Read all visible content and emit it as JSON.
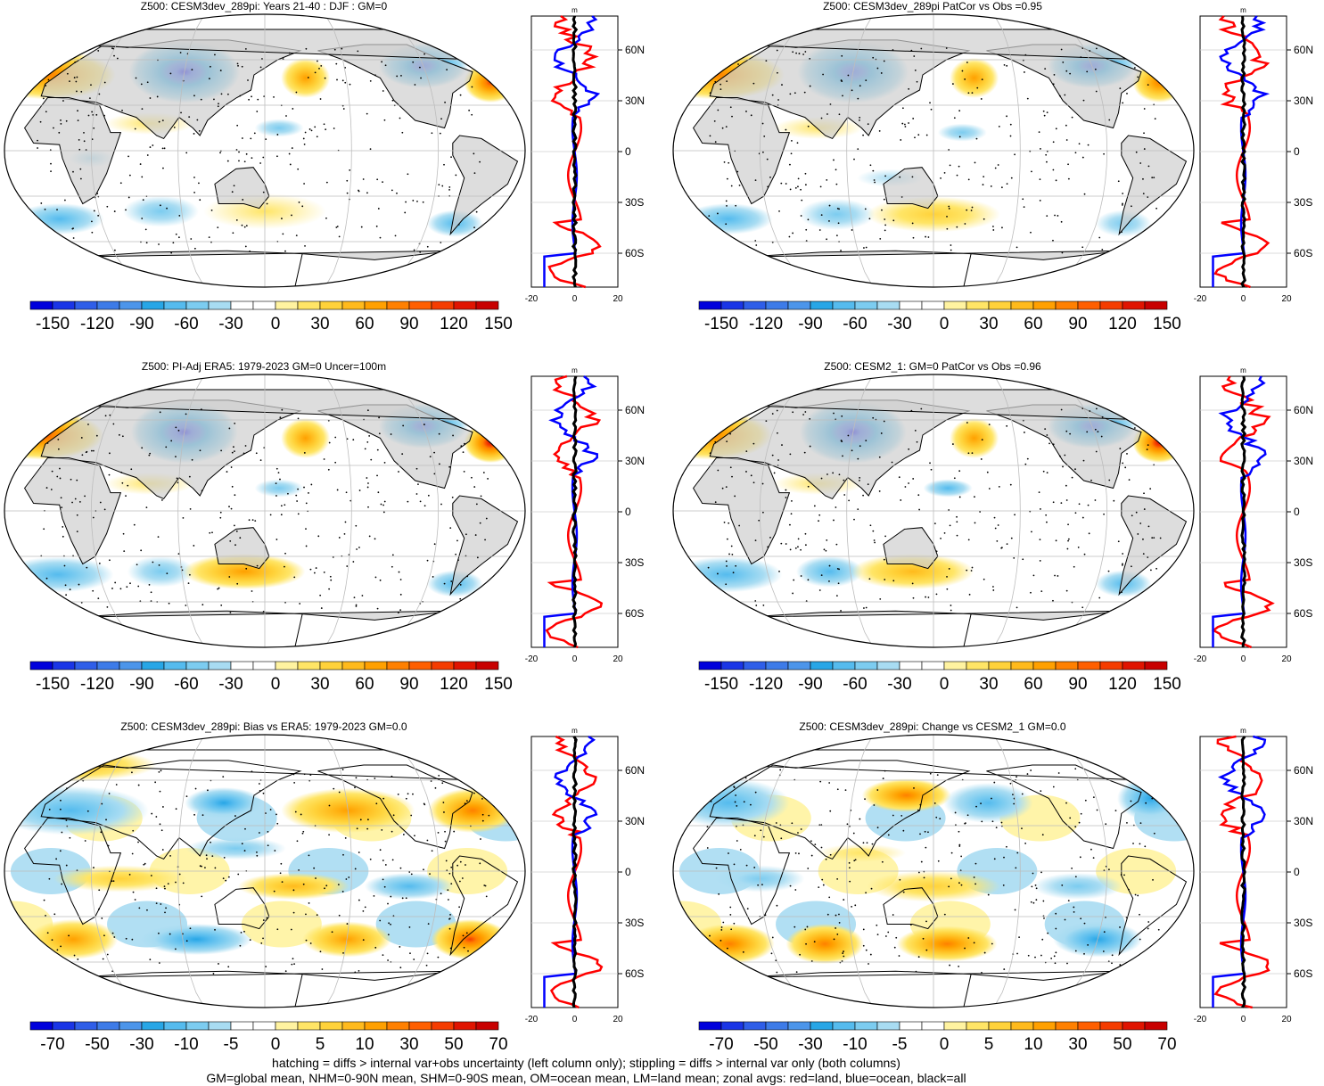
{
  "panels": [
    {
      "title": "Z500: CESM3dev_289pi: Years 21-40 : DJF : GM=0",
      "scale": "main"
    },
    {
      "title": "Z500: CESM3dev_289pi PatCor vs Obs =0.95",
      "scale": "main"
    },
    {
      "title": "Z500: PI-Adj ERA5: 1979-2023 GM=0 Uncer=100m",
      "scale": "main"
    },
    {
      "title": "Z500: CESM2_1: GM=0 PatCor vs Obs =0.96",
      "scale": "main"
    },
    {
      "title": "Z500: CESM3dev_289pi: Bias vs ERA5: 1979-2023 GM=0.0",
      "scale": "diff"
    },
    {
      "title": "Z500: CESM3dev_289pi: Change vs CESM2_1 GM=0.0",
      "scale": "diff"
    }
  ],
  "colorbars": {
    "main": {
      "labels": [
        "-150",
        "-120",
        "-90",
        "-60",
        "-30",
        "0",
        "30",
        "60",
        "90",
        "120",
        "150"
      ],
      "colors": [
        "#0000dc",
        "#1a35e6",
        "#2f5ee8",
        "#3d7be8",
        "#4c95ea",
        "#27a6e6",
        "#55bbee",
        "#7cccf0",
        "#a8dcf2",
        "#ffffff",
        "#ffffff",
        "#fff3a0",
        "#ffe566",
        "#ffd23a",
        "#ffba1c",
        "#ffa000",
        "#ff8000",
        "#ff5f00",
        "#f53c00",
        "#e01400",
        "#c80000"
      ]
    },
    "diff": {
      "labels": [
        "-70",
        "-50",
        "-30",
        "-10",
        "-5",
        "0",
        "5",
        "10",
        "30",
        "50",
        "70"
      ],
      "colors": [
        "#0000dc",
        "#1a35e6",
        "#2f5ee8",
        "#3d7be8",
        "#4c95ea",
        "#27a6e6",
        "#55bbee",
        "#7cccf0",
        "#a8dcf2",
        "#ffffff",
        "#ffffff",
        "#fff3a0",
        "#ffe566",
        "#ffd23a",
        "#ffba1c",
        "#ffa000",
        "#ff8000",
        "#ff5f00",
        "#f53c00",
        "#e01400",
        "#c80000"
      ]
    }
  },
  "zonal_axis": {
    "unit": "m",
    "x_ticks_main": [
      "-20",
      "0",
      "20"
    ],
    "x_ticks_diff_left": [
      "-20",
      "0",
      "20"
    ],
    "x_ticks_diff_right": [
      "-20",
      "0",
      "20"
    ],
    "lat_labels": [
      "60N",
      "30N",
      "0",
      "30S",
      "60S"
    ]
  },
  "chart_data": [
    {
      "type": "heatmap",
      "title": "Z500: CESM3dev_289pi: Years 21-40 : DJF : GM=0",
      "colorbar_ticks": [
        -150,
        -120,
        -90,
        -60,
        -30,
        0,
        30,
        60,
        90,
        120,
        150
      ]
    },
    {
      "type": "heatmap",
      "title": "Z500: CESM3dev_289pi PatCor vs Obs =0.95",
      "colorbar_ticks": [
        -150,
        -120,
        -90,
        -60,
        -30,
        0,
        30,
        60,
        90,
        120,
        150
      ]
    },
    {
      "type": "heatmap",
      "title": "Z500: PI-Adj ERA5: 1979-2023 GM=0 Uncer=100m",
      "colorbar_ticks": [
        -150,
        -120,
        -90,
        -60,
        -30,
        0,
        30,
        60,
        90,
        120,
        150
      ]
    },
    {
      "type": "heatmap",
      "title": "Z500: CESM2_1: GM=0 PatCor vs Obs =0.96",
      "colorbar_ticks": [
        -150,
        -120,
        -90,
        -60,
        -30,
        0,
        30,
        60,
        90,
        120,
        150
      ]
    },
    {
      "type": "heatmap",
      "title": "Z500: CESM3dev_289pi: Bias vs ERA5: 1979-2023 GM=0.0",
      "colorbar_ticks": [
        -70,
        -50,
        -30,
        -10,
        -5,
        0,
        5,
        10,
        30,
        50,
        70
      ]
    },
    {
      "type": "heatmap",
      "title": "Z500: CESM3dev_289pi: Change vs CESM2_1 GM=0.0",
      "colorbar_ticks": [
        -70,
        -50,
        -30,
        -10,
        -5,
        0,
        5,
        10,
        30,
        50,
        70
      ]
    }
  ],
  "footer": {
    "line1": "hatching = diffs > internal var+obs uncertainty (left column only); stippling = diffs > internal var only (both columns)",
    "line2": "GM=global mean, NHM=0-90N mean, SHM=0-90S mean, OM=ocean mean, LM=land mean; zonal avgs: red=land, blue=ocean, black=all"
  }
}
